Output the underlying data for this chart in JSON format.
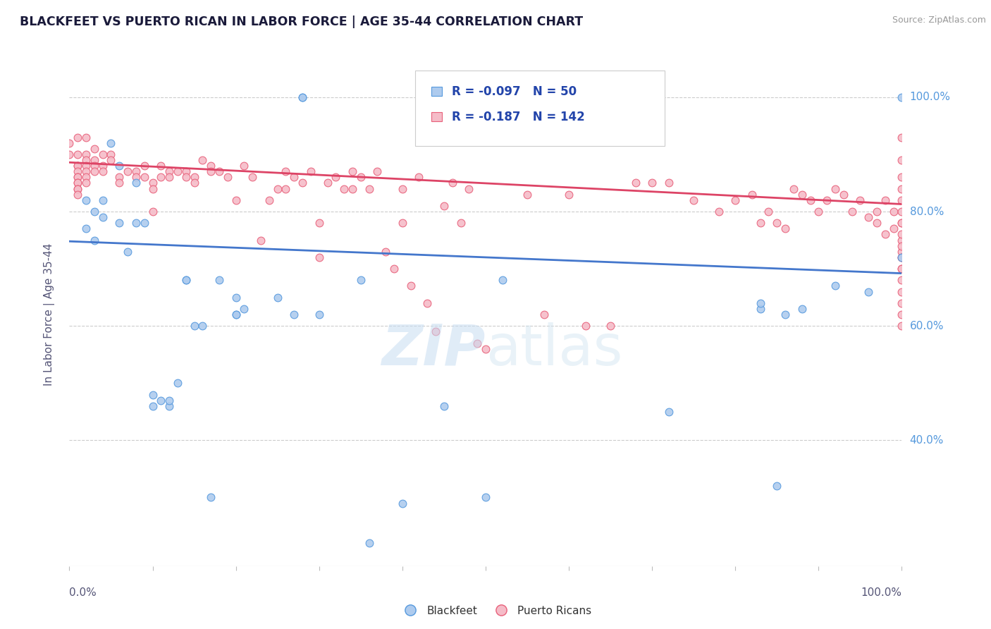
{
  "title": "BLACKFEET VS PUERTO RICAN IN LABOR FORCE | AGE 35-44 CORRELATION CHART",
  "source": "Source: ZipAtlas.com",
  "ylabel": "In Labor Force | Age 35-44",
  "ytick_labels": [
    "40.0%",
    "60.0%",
    "80.0%",
    "100.0%"
  ],
  "ytick_values": [
    0.4,
    0.6,
    0.8,
    1.0
  ],
  "xlim": [
    0.0,
    1.0
  ],
  "ylim": [
    0.18,
    1.06
  ],
  "legend_r_blue": "-0.097",
  "legend_n_blue": "50",
  "legend_r_pink": "-0.187",
  "legend_n_pink": "142",
  "blue_fill": "#aecbee",
  "pink_fill": "#f5bcc8",
  "blue_edge": "#5599dd",
  "pink_edge": "#e8607a",
  "trend_blue": "#4477cc",
  "trend_pink": "#dd4466",
  "blue_scatter": [
    [
      0.02,
      0.82
    ],
    [
      0.02,
      0.77
    ],
    [
      0.03,
      0.8
    ],
    [
      0.03,
      0.75
    ],
    [
      0.04,
      0.82
    ],
    [
      0.04,
      0.79
    ],
    [
      0.05,
      0.92
    ],
    [
      0.06,
      0.88
    ],
    [
      0.06,
      0.78
    ],
    [
      0.07,
      0.73
    ],
    [
      0.08,
      0.85
    ],
    [
      0.08,
      0.78
    ],
    [
      0.09,
      0.78
    ],
    [
      0.1,
      0.48
    ],
    [
      0.1,
      0.46
    ],
    [
      0.11,
      0.47
    ],
    [
      0.12,
      0.46
    ],
    [
      0.12,
      0.47
    ],
    [
      0.13,
      0.5
    ],
    [
      0.14,
      0.68
    ],
    [
      0.14,
      0.68
    ],
    [
      0.15,
      0.6
    ],
    [
      0.16,
      0.6
    ],
    [
      0.17,
      0.3
    ],
    [
      0.18,
      0.68
    ],
    [
      0.2,
      0.62
    ],
    [
      0.2,
      0.62
    ],
    [
      0.2,
      0.65
    ],
    [
      0.21,
      0.63
    ],
    [
      0.25,
      0.65
    ],
    [
      0.27,
      0.62
    ],
    [
      0.28,
      1.0
    ],
    [
      0.28,
      1.0
    ],
    [
      0.3,
      0.62
    ],
    [
      0.35,
      0.68
    ],
    [
      0.36,
      0.22
    ],
    [
      0.4,
      0.29
    ],
    [
      0.45,
      0.46
    ],
    [
      0.5,
      0.3
    ],
    [
      0.52,
      0.68
    ],
    [
      0.72,
      0.45
    ],
    [
      0.83,
      0.63
    ],
    [
      0.83,
      0.64
    ],
    [
      0.85,
      0.32
    ],
    [
      0.86,
      0.62
    ],
    [
      0.88,
      0.63
    ],
    [
      0.92,
      0.67
    ],
    [
      0.96,
      0.66
    ],
    [
      1.0,
      1.0
    ],
    [
      1.0,
      0.72
    ]
  ],
  "pink_scatter": [
    [
      0.0,
      0.92
    ],
    [
      0.0,
      0.9
    ],
    [
      0.01,
      0.93
    ],
    [
      0.01,
      0.9
    ],
    [
      0.01,
      0.88
    ],
    [
      0.01,
      0.88
    ],
    [
      0.01,
      0.87
    ],
    [
      0.01,
      0.86
    ],
    [
      0.01,
      0.86
    ],
    [
      0.01,
      0.85
    ],
    [
      0.01,
      0.85
    ],
    [
      0.01,
      0.84
    ],
    [
      0.01,
      0.84
    ],
    [
      0.01,
      0.83
    ],
    [
      0.02,
      0.93
    ],
    [
      0.02,
      0.9
    ],
    [
      0.02,
      0.89
    ],
    [
      0.02,
      0.88
    ],
    [
      0.02,
      0.87
    ],
    [
      0.02,
      0.86
    ],
    [
      0.02,
      0.85
    ],
    [
      0.03,
      0.91
    ],
    [
      0.03,
      0.89
    ],
    [
      0.03,
      0.88
    ],
    [
      0.03,
      0.87
    ],
    [
      0.04,
      0.9
    ],
    [
      0.04,
      0.88
    ],
    [
      0.04,
      0.87
    ],
    [
      0.05,
      0.9
    ],
    [
      0.05,
      0.89
    ],
    [
      0.06,
      0.86
    ],
    [
      0.06,
      0.85
    ],
    [
      0.07,
      0.87
    ],
    [
      0.08,
      0.87
    ],
    [
      0.08,
      0.86
    ],
    [
      0.09,
      0.88
    ],
    [
      0.09,
      0.86
    ],
    [
      0.1,
      0.85
    ],
    [
      0.1,
      0.84
    ],
    [
      0.1,
      0.8
    ],
    [
      0.11,
      0.88
    ],
    [
      0.11,
      0.86
    ],
    [
      0.12,
      0.87
    ],
    [
      0.12,
      0.86
    ],
    [
      0.13,
      0.87
    ],
    [
      0.14,
      0.87
    ],
    [
      0.14,
      0.86
    ],
    [
      0.15,
      0.86
    ],
    [
      0.15,
      0.85
    ],
    [
      0.16,
      0.89
    ],
    [
      0.17,
      0.88
    ],
    [
      0.17,
      0.87
    ],
    [
      0.18,
      0.87
    ],
    [
      0.19,
      0.86
    ],
    [
      0.2,
      0.82
    ],
    [
      0.21,
      0.88
    ],
    [
      0.22,
      0.86
    ],
    [
      0.23,
      0.75
    ],
    [
      0.24,
      0.82
    ],
    [
      0.25,
      0.84
    ],
    [
      0.26,
      0.87
    ],
    [
      0.26,
      0.84
    ],
    [
      0.27,
      0.86
    ],
    [
      0.28,
      0.85
    ],
    [
      0.29,
      0.87
    ],
    [
      0.3,
      0.78
    ],
    [
      0.3,
      0.72
    ],
    [
      0.31,
      0.85
    ],
    [
      0.32,
      0.86
    ],
    [
      0.33,
      0.84
    ],
    [
      0.34,
      0.87
    ],
    [
      0.34,
      0.84
    ],
    [
      0.35,
      0.86
    ],
    [
      0.36,
      0.84
    ],
    [
      0.37,
      0.87
    ],
    [
      0.38,
      0.73
    ],
    [
      0.39,
      0.7
    ],
    [
      0.4,
      0.84
    ],
    [
      0.4,
      0.78
    ],
    [
      0.41,
      0.67
    ],
    [
      0.42,
      0.86
    ],
    [
      0.43,
      0.64
    ],
    [
      0.44,
      0.59
    ],
    [
      0.45,
      0.81
    ],
    [
      0.46,
      0.85
    ],
    [
      0.47,
      0.78
    ],
    [
      0.48,
      0.84
    ],
    [
      0.49,
      0.57
    ],
    [
      0.5,
      0.56
    ],
    [
      0.55,
      0.83
    ],
    [
      0.57,
      0.62
    ],
    [
      0.6,
      0.83
    ],
    [
      0.62,
      0.6
    ],
    [
      0.65,
      0.6
    ],
    [
      0.68,
      0.85
    ],
    [
      0.7,
      0.85
    ],
    [
      0.72,
      0.85
    ],
    [
      0.75,
      0.82
    ],
    [
      0.78,
      0.8
    ],
    [
      0.8,
      0.82
    ],
    [
      0.82,
      0.83
    ],
    [
      0.83,
      0.78
    ],
    [
      0.84,
      0.8
    ],
    [
      0.85,
      0.78
    ],
    [
      0.86,
      0.77
    ],
    [
      0.87,
      0.84
    ],
    [
      0.88,
      0.83
    ],
    [
      0.89,
      0.82
    ],
    [
      0.9,
      0.8
    ],
    [
      0.91,
      0.82
    ],
    [
      0.92,
      0.84
    ],
    [
      0.93,
      0.83
    ],
    [
      0.94,
      0.8
    ],
    [
      0.95,
      0.82
    ],
    [
      0.96,
      0.79
    ],
    [
      0.97,
      0.78
    ],
    [
      0.97,
      0.8
    ],
    [
      0.98,
      0.82
    ],
    [
      0.98,
      0.76
    ],
    [
      0.99,
      0.77
    ],
    [
      0.99,
      0.8
    ],
    [
      1.0,
      0.78
    ],
    [
      1.0,
      0.75
    ],
    [
      1.0,
      0.73
    ],
    [
      1.0,
      0.72
    ],
    [
      1.0,
      0.7
    ],
    [
      1.0,
      0.93
    ],
    [
      1.0,
      0.89
    ],
    [
      1.0,
      0.86
    ],
    [
      1.0,
      0.84
    ],
    [
      1.0,
      0.82
    ],
    [
      1.0,
      0.8
    ],
    [
      1.0,
      0.78
    ],
    [
      1.0,
      0.76
    ],
    [
      1.0,
      0.74
    ],
    [
      1.0,
      0.72
    ],
    [
      1.0,
      0.7
    ],
    [
      1.0,
      0.68
    ],
    [
      1.0,
      0.66
    ],
    [
      1.0,
      0.64
    ],
    [
      1.0,
      0.62
    ],
    [
      1.0,
      0.6
    ]
  ],
  "blue_trend_x": [
    0.0,
    1.0
  ],
  "blue_trend_y": [
    0.748,
    0.692
  ],
  "pink_trend_x": [
    0.0,
    1.0
  ],
  "pink_trend_y": [
    0.886,
    0.813
  ]
}
